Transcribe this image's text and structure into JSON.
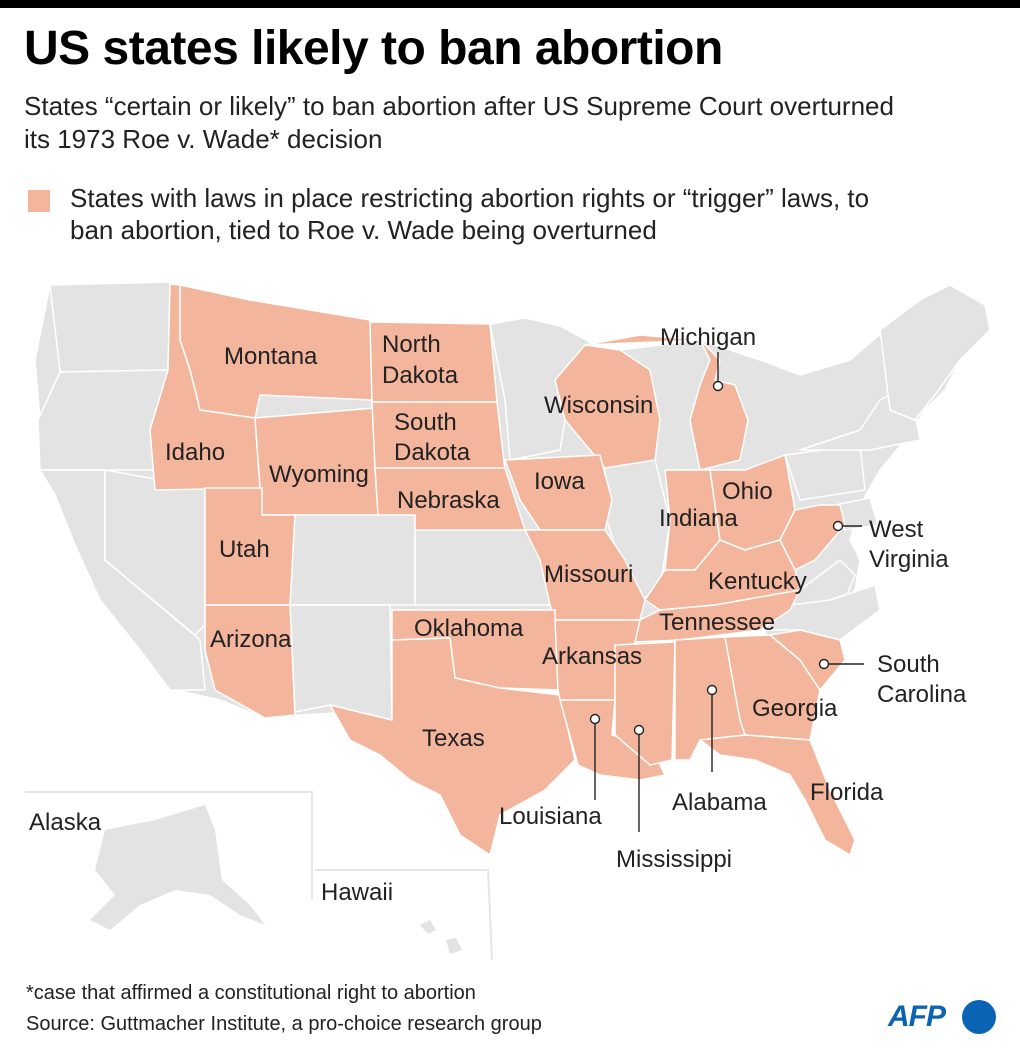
{
  "title": "US states likely to ban abortion",
  "subtitle": "States “certain or likely” to ban abortion after US Supreme Court overturned its 1973 Roe v. Wade* decision",
  "legend": {
    "label": "States with laws in place restricting abortion rights or “trigger” laws, to ban abortion, tied to Roe v. Wade being overturned",
    "color": "#f4b59d"
  },
  "colors": {
    "highlight": "#f4b59d",
    "other": "#e3e3e3",
    "border": "#ffffff",
    "brand": "#0b63b5"
  },
  "states": {
    "montana": "Montana",
    "north_dakota_1": "North",
    "north_dakota_2": "Dakota",
    "south_dakota_1": "South",
    "south_dakota_2": "Dakota",
    "idaho": "Idaho",
    "wyoming": "Wyoming",
    "nebraska": "Nebraska",
    "utah": "Utah",
    "arizona": "Arizona",
    "wisconsin": "Wisconsin",
    "michigan": "Michigan",
    "iowa": "Iowa",
    "indiana": "Indiana",
    "ohio": "Ohio",
    "west_virginia_1": "West",
    "west_virginia_2": "Virginia",
    "missouri": "Missouri",
    "kentucky": "Kentucky",
    "tennessee": "Tennessee",
    "oklahoma": "Oklahoma",
    "arkansas": "Arkansas",
    "south_carolina_1": "South",
    "south_carolina_2": "Carolina",
    "georgia": "Georgia",
    "texas": "Texas",
    "louisiana": "Louisiana",
    "mississippi": "Mississippi",
    "alabama": "Alabama",
    "florida": "Florida"
  },
  "insets": {
    "alaska": "Alaska",
    "hawaii": "Hawaii"
  },
  "footnote": "*case that affirmed a constitutional right to abortion",
  "source": "Source: Guttmacher Institute, a pro-choice research group",
  "logo": "AFP"
}
